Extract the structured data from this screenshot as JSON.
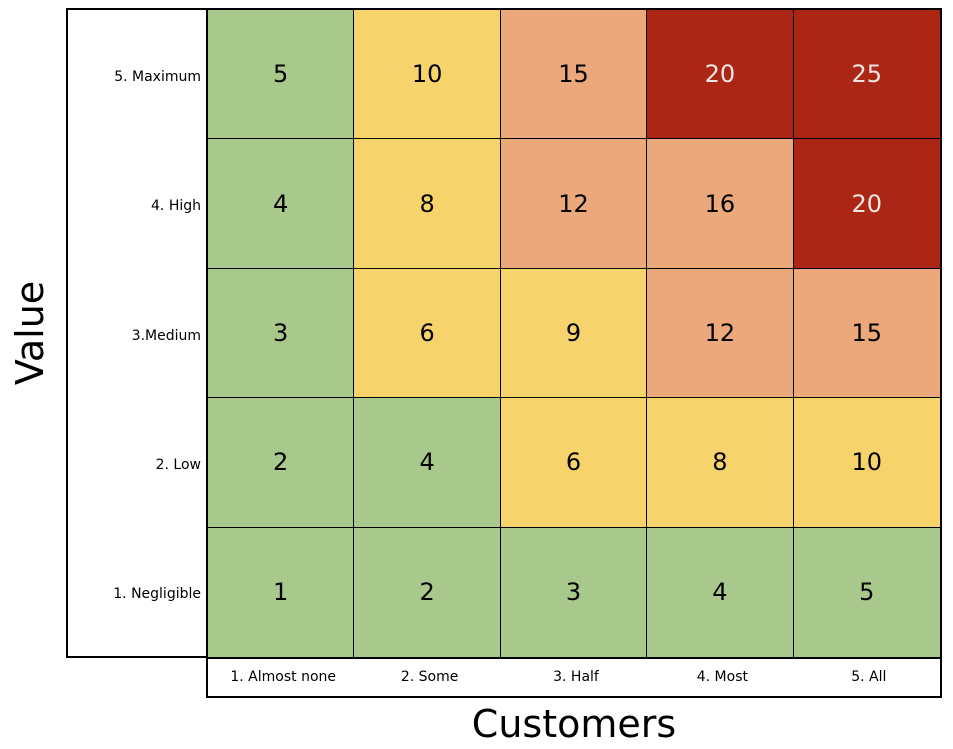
{
  "chart_data": {
    "type": "heatmap",
    "title": "",
    "xlabel": "Customers",
    "ylabel": "Value",
    "x_categories": [
      "1. Almost none",
      "2. Some",
      "3. Half",
      "4. Most",
      "5. All"
    ],
    "y_categories": [
      "1. Negligible",
      "2. Low",
      "3.Medium",
      "4. High",
      "5. Maximum"
    ],
    "values": [
      [
        1,
        2,
        3,
        4,
        5
      ],
      [
        2,
        4,
        6,
        8,
        10
      ],
      [
        3,
        6,
        9,
        12,
        15
      ],
      [
        4,
        8,
        12,
        16,
        20
      ],
      [
        5,
        10,
        15,
        20,
        25
      ]
    ],
    "color_scale": {
      "green": "#a9c98c",
      "yellow": "#f7d36b",
      "orange": "#eaa87b",
      "red": "#ab2615"
    },
    "color_map": [
      [
        "green",
        "green",
        "green",
        "green",
        "green"
      ],
      [
        "green",
        "green",
        "yellow",
        "yellow",
        "yellow"
      ],
      [
        "green",
        "yellow",
        "yellow",
        "orange",
        "orange"
      ],
      [
        "green",
        "yellow",
        "orange",
        "orange",
        "red"
      ],
      [
        "green",
        "yellow",
        "orange",
        "red",
        "red"
      ]
    ],
    "text_colors": {
      "dark": "#000000",
      "light": "#f2e6e2"
    }
  }
}
